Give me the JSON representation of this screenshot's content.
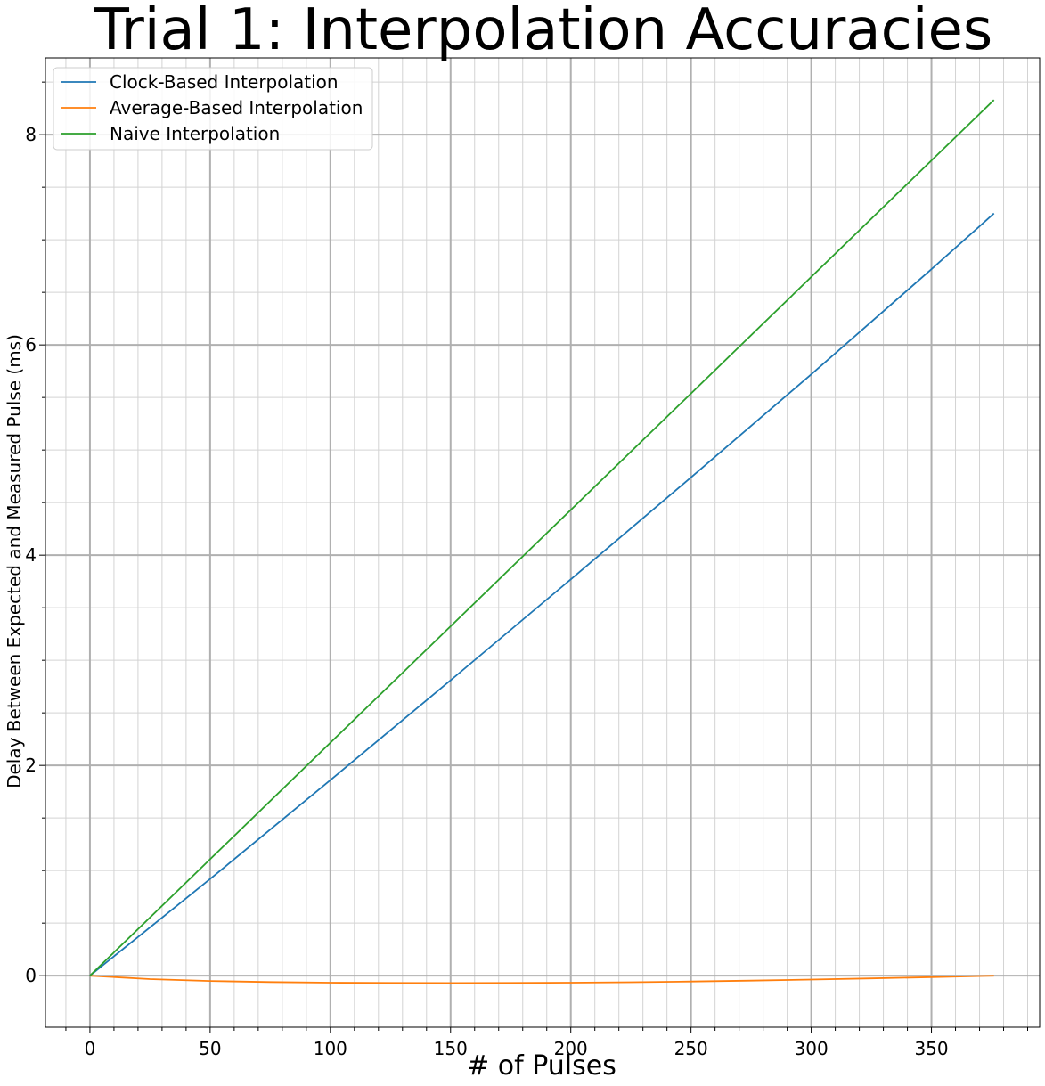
{
  "chart_data": {
    "type": "line",
    "title": "Trial 1: Interpolation Accuracies",
    "xlabel": "# of Pulses",
    "ylabel": "Delay Between Expected and Measured Pulse (ms)",
    "xlim": [
      -18.5,
      395
    ],
    "ylim": [
      -0.49,
      8.73
    ],
    "x_major_ticks": [
      0,
      50,
      100,
      150,
      200,
      250,
      300,
      350
    ],
    "x_minor_step": 10,
    "y_major_ticks": [
      0,
      2,
      4,
      6,
      8
    ],
    "y_minor_step": 0.5,
    "grid": true,
    "legend_position": "top-left",
    "series": [
      {
        "name": "Clock-Based Interpolation",
        "color": "#1f77b4",
        "x": [
          0,
          50,
          100,
          150,
          200,
          250,
          300,
          350,
          376
        ],
        "y": [
          0,
          0.92,
          1.86,
          2.81,
          3.77,
          4.74,
          5.72,
          6.72,
          7.25
        ]
      },
      {
        "name": "Average-Based Interpolation",
        "color": "#ff7f0e",
        "x": [
          0,
          25,
          50,
          75,
          100,
          125,
          150,
          175,
          200,
          225,
          250,
          275,
          300,
          325,
          350,
          376
        ],
        "y": [
          0,
          -0.032,
          -0.05,
          -0.06,
          -0.066,
          -0.069,
          -0.07,
          -0.069,
          -0.066,
          -0.062,
          -0.055,
          -0.047,
          -0.037,
          -0.026,
          -0.014,
          0
        ]
      },
      {
        "name": "Naive Interpolation",
        "color": "#2ca02c",
        "x": [
          0,
          376
        ],
        "y": [
          0,
          8.33
        ]
      }
    ]
  }
}
